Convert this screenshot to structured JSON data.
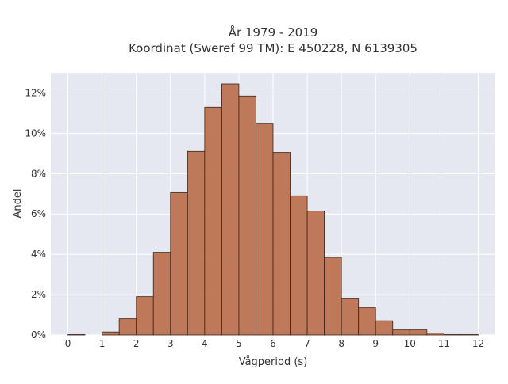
{
  "chart_data": {
    "type": "bar",
    "title_lines": [
      "År 1979 - 2019",
      "Koordinat (Sweref 99 TM): E 450228, N 6139305"
    ],
    "xlabel": "Vågperiod (s)",
    "ylabel": "Andel",
    "x_ticks": [
      "0",
      "1",
      "2",
      "3",
      "4",
      "5",
      "6",
      "7",
      "8",
      "9",
      "10",
      "11",
      "12"
    ],
    "y_ticks": [
      "0%",
      "2%",
      "4%",
      "6%",
      "8%",
      "10%",
      "12%"
    ],
    "xlim": [
      -0.5,
      12.5
    ],
    "ylim": [
      0,
      13
    ],
    "bin_width": 0.5,
    "bins": [
      {
        "x0": 0.0,
        "value": 0.02
      },
      {
        "x0": 0.5,
        "value": 0.0
      },
      {
        "x0": 1.0,
        "value": 0.15
      },
      {
        "x0": 1.5,
        "value": 0.8
      },
      {
        "x0": 2.0,
        "value": 1.9
      },
      {
        "x0": 2.5,
        "value": 4.1
      },
      {
        "x0": 3.0,
        "value": 7.05
      },
      {
        "x0": 3.5,
        "value": 9.1
      },
      {
        "x0": 4.0,
        "value": 11.3
      },
      {
        "x0": 4.5,
        "value": 12.45
      },
      {
        "x0": 5.0,
        "value": 11.85
      },
      {
        "x0": 5.5,
        "value": 10.5
      },
      {
        "x0": 6.0,
        "value": 9.05
      },
      {
        "x0": 6.5,
        "value": 6.9
      },
      {
        "x0": 7.0,
        "value": 6.15
      },
      {
        "x0": 7.5,
        "value": 3.85
      },
      {
        "x0": 8.0,
        "value": 1.8
      },
      {
        "x0": 8.5,
        "value": 1.35
      },
      {
        "x0": 9.0,
        "value": 0.7
      },
      {
        "x0": 9.5,
        "value": 0.25
      },
      {
        "x0": 10.0,
        "value": 0.25
      },
      {
        "x0": 10.5,
        "value": 0.1
      },
      {
        "x0": 11.0,
        "value": 0.02
      },
      {
        "x0": 11.5,
        "value": 0.02
      }
    ],
    "grid": true,
    "colors": {
      "bar_fill": "#bb7350",
      "bar_stroke": "#3a2418",
      "plot_bg": "#e5e8f0",
      "grid": "#ffffff"
    }
  }
}
